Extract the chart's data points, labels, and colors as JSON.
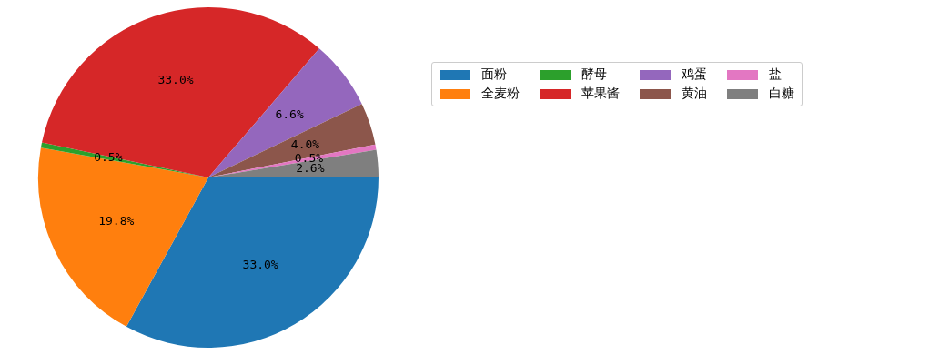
{
  "chart_data": {
    "type": "pie",
    "categories": [
      "面粉",
      "全麦粉",
      "酵母",
      "苹果酱",
      "鸡蛋",
      "黄油",
      "盐",
      "白糖"
    ],
    "values": [
      33.0,
      19.8,
      0.5,
      33.0,
      6.6,
      4.0,
      0.5,
      2.6
    ],
    "colors": [
      "#1f77b4",
      "#ff7f0e",
      "#2ca02c",
      "#d62728",
      "#9467bd",
      "#8c564b",
      "#e377c2",
      "#7f7f7f"
    ],
    "value_labels": [
      "33.0%",
      "19.8%",
      "0.5%",
      "33.0%",
      "6.6%",
      "4.0%",
      "0.5%",
      "2.6%"
    ],
    "legend": "right"
  }
}
